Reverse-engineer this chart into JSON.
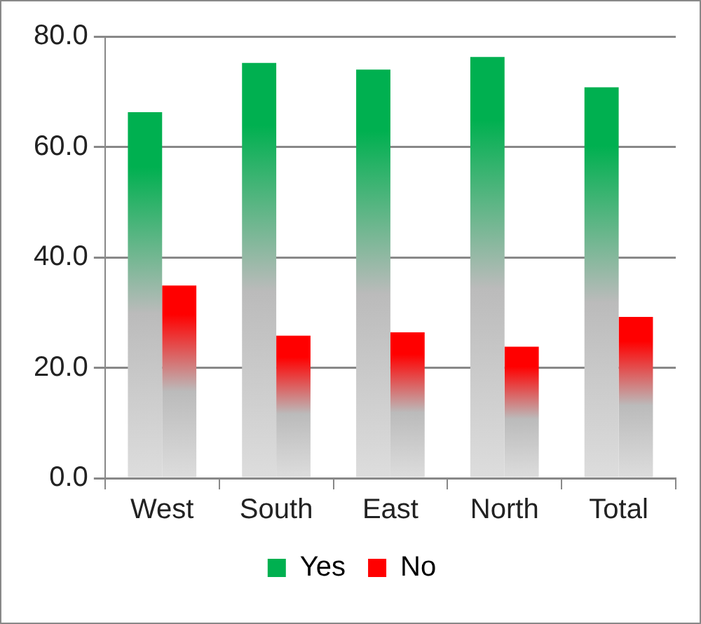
{
  "chart_data": {
    "type": "bar",
    "categories": [
      "West",
      "South",
      "East",
      "North",
      "Total"
    ],
    "series": [
      {
        "name": "Yes",
        "color": "#00b050",
        "values": [
          66.3,
          75.2,
          74.0,
          76.3,
          70.8
        ]
      },
      {
        "name": "No",
        "color": "#ff0000",
        "values": [
          34.9,
          25.8,
          26.4,
          23.8,
          29.2
        ]
      }
    ],
    "ylim": [
      0,
      80
    ],
    "yticks": [
      {
        "value": 0,
        "label": "0.0"
      },
      {
        "value": 20,
        "label": "20.0"
      },
      {
        "value": 40,
        "label": "40.0"
      },
      {
        "value": 60,
        "label": "60.0"
      },
      {
        "value": 80,
        "label": "80.0"
      }
    ],
    "grid": "y",
    "legend": "bottom"
  }
}
